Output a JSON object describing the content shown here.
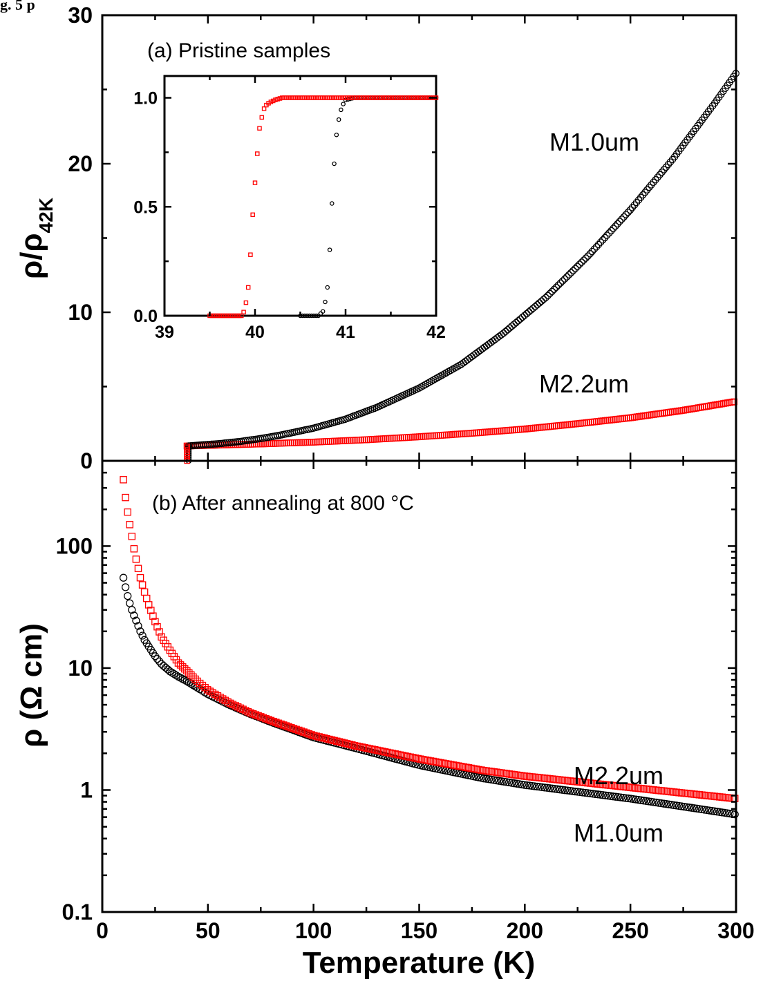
{
  "header_fragment": "g. 5 p",
  "x_axis": {
    "label": "Temperature (K)",
    "range": [
      0,
      300
    ],
    "ticks": [
      0,
      50,
      100,
      150,
      200,
      250,
      300
    ]
  },
  "chart_data": [
    {
      "type": "scatter",
      "panel": "top",
      "annotation": "(a) Pristine samples",
      "ylabel": "ρ/ρ",
      "ylabel_sub": "42K",
      "xlim": [
        0,
        300
      ],
      "ylim": [
        0,
        30
      ],
      "y_ticks": [
        0,
        10,
        20,
        30
      ],
      "y_scale": "linear",
      "series": [
        {
          "name": "M1.0um",
          "marker": "circle",
          "color": "#000000",
          "x": [
            40.9,
            45,
            55,
            65,
            75,
            85,
            100,
            115,
            130,
            150,
            170,
            190,
            210,
            230,
            250,
            270,
            290,
            300
          ],
          "y": [
            1.0,
            1.05,
            1.15,
            1.3,
            1.5,
            1.75,
            2.2,
            2.8,
            3.6,
            4.9,
            6.5,
            8.6,
            11.0,
            13.8,
            16.9,
            20.3,
            24.1,
            26.1
          ]
        },
        {
          "name": "M2.2um",
          "marker": "square",
          "color": "#ff0000",
          "x": [
            40.1,
            50,
            60,
            75,
            100,
            125,
            150,
            175,
            200,
            225,
            250,
            275,
            300
          ],
          "y": [
            1.0,
            1.04,
            1.08,
            1.14,
            1.26,
            1.42,
            1.62,
            1.86,
            2.14,
            2.5,
            2.9,
            3.4,
            4.0
          ]
        }
      ]
    },
    {
      "type": "scatter",
      "panel": "inset",
      "xlim": [
        39,
        42
      ],
      "ylim": [
        0,
        1.1
      ],
      "x_ticks": [
        39,
        40,
        41,
        42
      ],
      "y_ticks": [
        0.0,
        0.5,
        1.0
      ],
      "y_tick_labels": [
        "0.0",
        "0.5",
        "1.0"
      ],
      "series": [
        {
          "name": "M1.0um",
          "marker": "circle",
          "color": "#000000",
          "x": [
            40.5,
            40.6,
            40.7,
            40.75,
            40.77,
            40.8,
            40.82,
            40.84,
            40.86,
            40.88,
            40.9,
            40.92,
            40.94,
            40.96,
            41.0,
            41.1,
            41.3,
            41.6,
            42.0
          ],
          "y": [
            0.0,
            0.0,
            0.0,
            0.02,
            0.05,
            0.13,
            0.26,
            0.43,
            0.6,
            0.73,
            0.83,
            0.89,
            0.93,
            0.96,
            0.99,
            1.0,
            1.0,
            1.0,
            1.0
          ]
        },
        {
          "name": "M2.2um",
          "marker": "square",
          "color": "#ff0000",
          "x": [
            39.5,
            39.7,
            39.85,
            39.88,
            39.92,
            39.95,
            39.98,
            40.02,
            40.05,
            40.08,
            40.1,
            40.13,
            40.17,
            40.22,
            40.3,
            40.5,
            40.8,
            41.2,
            41.6,
            42.0
          ],
          "y": [
            0.0,
            0.0,
            0.0,
            0.02,
            0.1,
            0.28,
            0.5,
            0.72,
            0.86,
            0.92,
            0.95,
            0.97,
            0.98,
            0.99,
            1.0,
            1.0,
            1.0,
            1.0,
            1.0,
            1.0
          ]
        }
      ]
    },
    {
      "type": "scatter",
      "panel": "bottom",
      "annotation": "(b) After annealing at 800 °C",
      "ylabel": "ρ (Ω cm)",
      "xlim": [
        0,
        300
      ],
      "ylim": [
        0.1,
        500
      ],
      "y_scale": "log",
      "y_ticks": [
        0.1,
        1,
        10,
        100
      ],
      "y_tick_labels": [
        "0.1",
        "1",
        "10",
        "100"
      ],
      "series": [
        {
          "name": "M2.2um",
          "marker": "square",
          "color": "#ff0000",
          "x": [
            10,
            11,
            12,
            13,
            14,
            15,
            16,
            18,
            20,
            22,
            25,
            28,
            32,
            36,
            40,
            45,
            50,
            60,
            70,
            80,
            100,
            120,
            150,
            180,
            200,
            250,
            300
          ],
          "y": [
            350,
            250,
            190,
            150,
            120,
            95,
            78,
            55,
            42,
            33,
            24,
            18,
            14,
            11,
            9.5,
            7.8,
            6.6,
            5.2,
            4.3,
            3.7,
            2.8,
            2.3,
            1.8,
            1.45,
            1.3,
            1.05,
            0.85
          ]
        },
        {
          "name": "M1.0um",
          "marker": "circle",
          "color": "#000000",
          "x": [
            10,
            11,
            12,
            13,
            14,
            15,
            16,
            18,
            20,
            22,
            25,
            28,
            32,
            36,
            40,
            45,
            50,
            60,
            70,
            80,
            100,
            120,
            150,
            180,
            200,
            250,
            300
          ],
          "y": [
            55,
            46,
            39,
            34,
            30,
            27,
            24.5,
            20,
            17,
            15,
            12.5,
            10.8,
            9.4,
            8.5,
            7.8,
            6.9,
            6.1,
            5.0,
            4.2,
            3.6,
            2.7,
            2.2,
            1.6,
            1.25,
            1.1,
            0.85,
            0.63
          ]
        }
      ]
    }
  ]
}
